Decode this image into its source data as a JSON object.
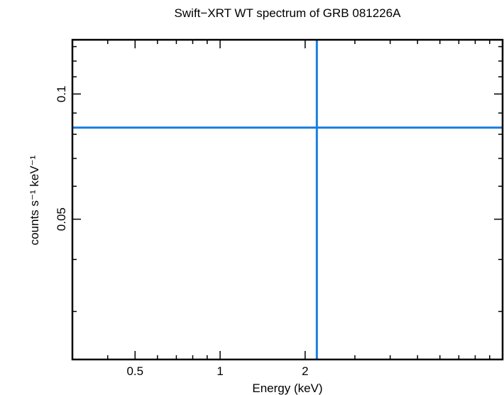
{
  "chart_data": {
    "type": "line",
    "title": "Swift−XRT WT spectrum of GRB 081226A",
    "xlabel": "Energy (keV)",
    "ylabel": "counts s⁻¹ keV⁻¹",
    "x_scale": "log",
    "y_scale": "log",
    "xlim": [
      0.3,
      10
    ],
    "ylim": [
      0.023,
      0.135
    ],
    "x_ticks": [
      0.5,
      1,
      2
    ],
    "x_tick_labels": [
      "0.5",
      "1",
      "2"
    ],
    "y_ticks": [
      0.05,
      0.1
    ],
    "y_tick_labels": [
      "0.05",
      "0.1"
    ],
    "grid": false,
    "series": [
      {
        "x": [
          0.3,
          10
        ],
        "y": [
          0.083,
          0.083
        ],
        "orientation": "horizontal"
      },
      {
        "x": [
          2.2,
          2.2
        ],
        "y": [
          0.023,
          0.135
        ],
        "orientation": "vertical"
      }
    ],
    "colors": {
      "series": "#1a7ee0",
      "axes": "#000000"
    }
  }
}
